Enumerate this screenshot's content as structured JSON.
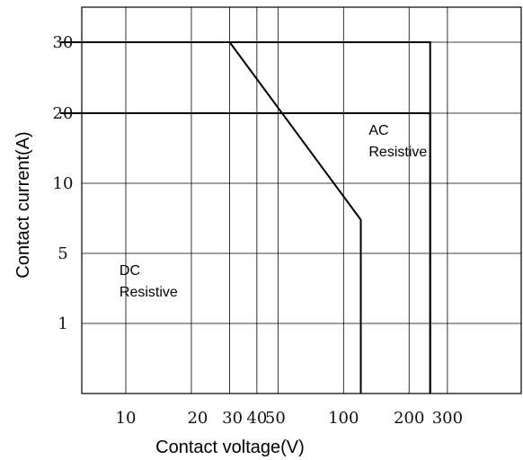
{
  "chart_data": {
    "type": "line",
    "xlabel": "Contact voltage(V)",
    "ylabel": "Contact current(A)",
    "x_scale": "log",
    "y_scale": "nonlinear",
    "grid": true,
    "x_ticks": [
      {
        "value": 10,
        "label": "10"
      },
      {
        "value": 20,
        "label": "20"
      },
      {
        "value": 30,
        "label": "30"
      },
      {
        "value": 40,
        "label": "40"
      },
      {
        "value": 50,
        "label": "50"
      },
      {
        "value": 100,
        "label": "100"
      },
      {
        "value": 200,
        "label": "200"
      },
      {
        "value": 300,
        "label": "300"
      }
    ],
    "y_ticks": [
      {
        "value": 1,
        "label": "1"
      },
      {
        "value": 5,
        "label": "5"
      },
      {
        "value": 10,
        "label": "10"
      },
      {
        "value": 20,
        "label": "20"
      },
      {
        "value": 30,
        "label": "30"
      }
    ],
    "series": [
      {
        "points": [
          {
            "x": 5,
            "y": 20
          },
          {
            "x": 250,
            "y": 20
          },
          {
            "x": 250,
            "y": 0
          }
        ]
      },
      {
        "points": [
          {
            "x": 5,
            "y": 30
          },
          {
            "x": 30,
            "y": 30
          },
          {
            "x": 120,
            "y": 7.4
          },
          {
            "x": 120,
            "y": 0
          }
        ]
      },
      {
        "points": [
          {
            "x": 30,
            "y": 30
          },
          {
            "x": 250,
            "y": 30
          },
          {
            "x": 250,
            "y": 0
          }
        ]
      }
    ],
    "annotations": [
      {
        "lines": [
          "AC",
          "Resistive"
        ],
        "x": 210,
        "y": 20,
        "anchor": "end"
      },
      {
        "lines": [
          "DC",
          "Resistive"
        ],
        "x": 9,
        "y": 2.8,
        "anchor": "start"
      }
    ]
  }
}
